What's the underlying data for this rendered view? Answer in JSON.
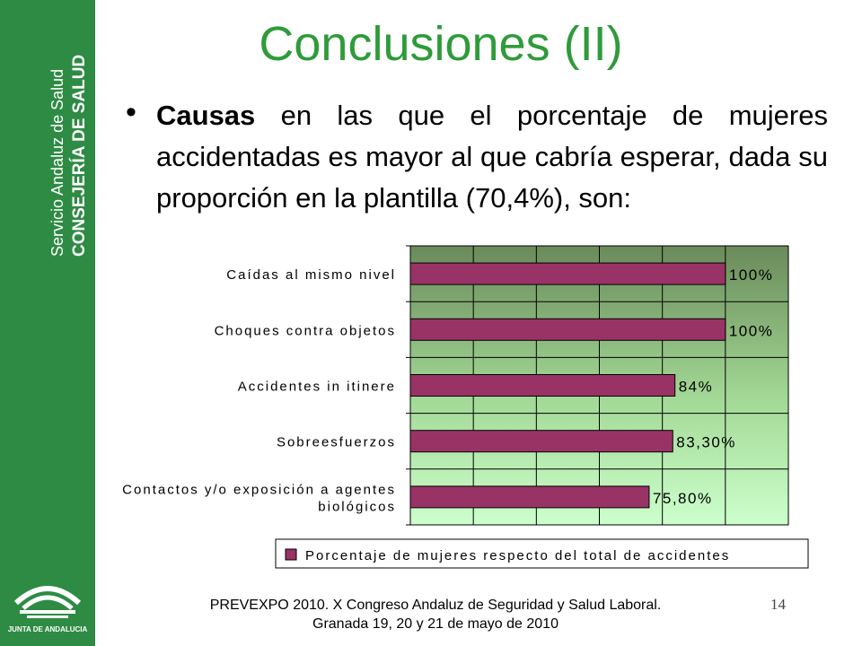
{
  "sidebar": {
    "org_line1": "Servicio Andaluz de Salud",
    "org_line2": "CONSEJERÍA DE SALUD",
    "logo_text": "JUNTA DE ANDALUCIA"
  },
  "title": "Conclusiones (II)",
  "bullet": {
    "bold": "Causas",
    "text": " en las que el porcentaje de mujeres accidentadas es mayor al que cabría esperar, dada su proporción en la plantilla (70,4%), son:"
  },
  "chart_data": {
    "type": "bar",
    "orientation": "horizontal",
    "categories": [
      [
        "Caídas al mismo nivel"
      ],
      [
        "Choques contra objetos"
      ],
      [
        "Accidentes in itinere"
      ],
      [
        "Sobreesfuerzos"
      ],
      [
        "Contactos y/o exposición a agentes",
        "biológicos"
      ]
    ],
    "series": [
      {
        "name": "Porcentaje de mujeres respecto del total de accidentes",
        "values": [
          100,
          100,
          84,
          83.3,
          75.8
        ],
        "labels": [
          "100%",
          "100%",
          "84%",
          "83,30%",
          "75,80%"
        ]
      }
    ],
    "xlim": [
      0,
      120
    ],
    "grid": true,
    "legend": "bottom",
    "colors": {
      "bar": "#993366",
      "plot_bg_top": "#6a8a5a",
      "plot_bg_bottom": "#ccffcc"
    }
  },
  "footer": {
    "line1": "PREVEXPO 2010. X Congreso Andaluz de Seguridad y Salud Laboral.",
    "line2": "Granada 19, 20 y 21 de mayo de 2010"
  },
  "page_number": "14"
}
